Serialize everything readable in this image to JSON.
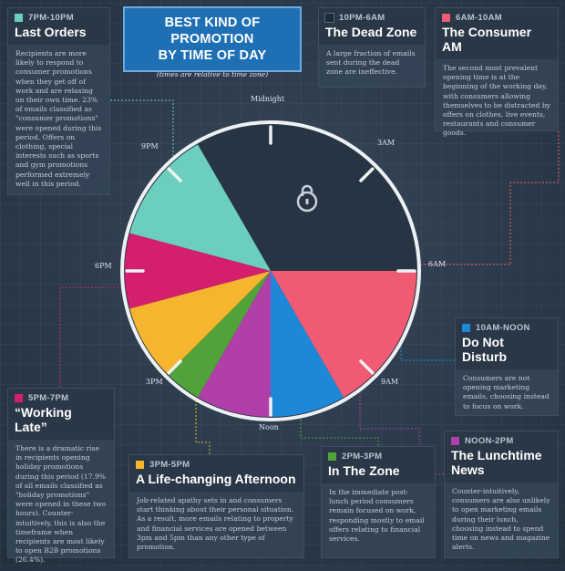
{
  "header": {
    "title_line1": "BEST KIND OF PROMOTION",
    "title_line2": "BY TIME OF DAY",
    "subtitle": "(times are relative to time zone)"
  },
  "clock": {
    "labels": {
      "midnight": "Midnight",
      "three_am": "3AM",
      "six_am": "6AM",
      "nine_am": "9AM",
      "noon": "Noon",
      "three_pm": "3PM",
      "six_pm": "6PM",
      "nine_pm": "9PM"
    },
    "icon": "lock-icon"
  },
  "segments": [
    {
      "name": "10PM-6AM",
      "color": "#263444",
      "start_hour": 22,
      "end_hour": 6
    },
    {
      "name": "6AM-10AM",
      "color": "#f05a72",
      "start_hour": 6,
      "end_hour": 10
    },
    {
      "name": "10AM-NOON",
      "color": "#1e88d8",
      "start_hour": 10,
      "end_hour": 12
    },
    {
      "name": "NOON-2PM",
      "color": "#b03fa8",
      "start_hour": 12,
      "end_hour": 14
    },
    {
      "name": "2PM-3PM",
      "color": "#52a23a",
      "start_hour": 14,
      "end_hour": 15
    },
    {
      "name": "3PM-5PM",
      "color": "#f6b52e",
      "start_hour": 15,
      "end_hour": 17
    },
    {
      "name": "5PM-7PM",
      "color": "#d41f6d",
      "start_hour": 17,
      "end_hour": 19
    },
    {
      "name": "7PM-10PM",
      "color": "#6ccfbd",
      "start_hour": 19,
      "end_hour": 22
    }
  ],
  "cards": {
    "last_orders": {
      "time": "7PM-10PM",
      "title": "Last Orders",
      "color": "#6ccfbd",
      "body": "Recipients are more likely to respond to consumer promotions when they get off of work and are relaxing on their own time. 23% of emails classified as \"consumer promotions\" were opened during this period. Offers on clothing, special interests such as sports and gym promotions performed extremely well in this period."
    },
    "dead_zone": {
      "time": "10PM-6AM",
      "title": "The Dead Zone",
      "color": "#1e2a36",
      "body": "A large fraction of emails sent during the dead zone are ineffective."
    },
    "consumer_am": {
      "time": "6AM-10AM",
      "title": "The Consumer AM",
      "color": "#f05a72",
      "body": "The second most prevalent opening time is at the beginning of the working day, with consumers allowing themselves to be distracted by offers on clothes, live events, restaurants and consumer goods."
    },
    "do_not_disturb": {
      "time": "10AM-NOON",
      "title": "Do Not Disturb",
      "color": "#1e88d8",
      "body": "Consumers are not opening marketing emails, choosing instead to focus on work."
    },
    "working_late": {
      "time": "5PM-7PM",
      "title": "“Working Late”",
      "color": "#d41f6d",
      "body": "There is a dramatic rise in recipients opening holiday promotions during this period (17.9% of all emails classified as \"holiday promotions\" were opened in these two hours). Counter-intuitively, this is also the timeframe when recipients are most likely to open B2B promotions (26.4%)."
    },
    "life_changing": {
      "time": "3PM-5PM",
      "title": "A Life-changing Afternoon",
      "color": "#f6b52e",
      "body": "Job-related apathy sets in and consumers start thinking about their personal situation. As a result, more emails relating to property and financial services are opened between 3pm and 5pm than any other type of promotion."
    },
    "in_the_zone": {
      "time": "2PM-3PM",
      "title": "In The Zone",
      "color": "#52a23a",
      "body": "In the immediate post-lunch period consumers remain focused on work, responding mostly to email offers relating to financial services."
    },
    "lunchtime_news": {
      "time": "NOON-2PM",
      "title": "The Lunchtime News",
      "color": "#b03fa8",
      "body": "Counter-intuitively, consumers are also unlikely to open marketing emails during their lunch, choosing instead to spend time on news and magazine alerts."
    }
  }
}
